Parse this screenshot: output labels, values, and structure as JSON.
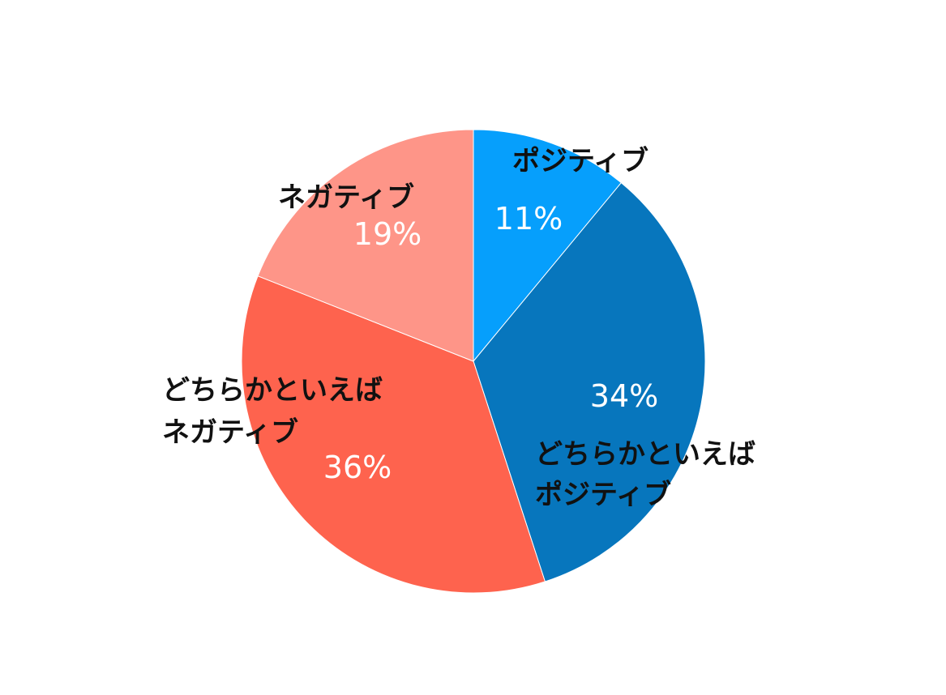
{
  "chart_data": {
    "type": "pie",
    "categories": [
      "ポジティブ",
      "どちらかといえばポジティブ",
      "どちらかといえばネガティブ",
      "ネガティブ"
    ],
    "values": [
      11,
      34,
      36,
      19
    ],
    "unit": "%",
    "start": "12 o'clock",
    "direction": "clockwise",
    "colors": [
      "#069ffc",
      "#0776bd",
      "#fe634e",
      "#fe9588"
    ],
    "slices": [
      {
        "label_lines": [
          "ポジティブ"
        ],
        "pct_text": "11%"
      },
      {
        "label_lines": [
          "どちらかといえば",
          "ポジティブ"
        ],
        "pct_text": "34%"
      },
      {
        "label_lines": [
          "どちらかといえば",
          "ネガティブ"
        ],
        "pct_text": "36%"
      },
      {
        "label_lines": [
          "ネガティブ"
        ],
        "pct_text": "19%"
      }
    ]
  }
}
